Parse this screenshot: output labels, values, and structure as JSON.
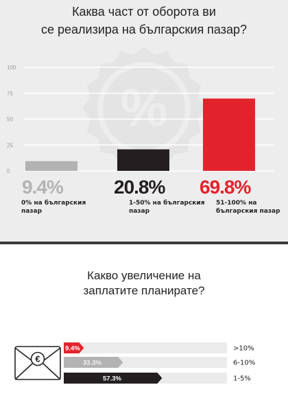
{
  "colors": {
    "red": "#e3232c",
    "dark": "#231f20",
    "gray": "#b3b3b3",
    "light_track": "#ebebeb"
  },
  "chart1": {
    "title_line1": "Каква част от оборота ви",
    "title_line2": "се реализира на българския пазар?",
    "icon": "percent-seal-icon"
  },
  "chart2": {
    "title_line1": "Какво увеличение на",
    "title_line2": "заплатите планирате?",
    "icon": "euro-envelope-icon"
  },
  "chart_data": [
    {
      "type": "bar",
      "title": "Каква част от оборота ви се реализира на българския пазар?",
      "ylim": [
        0,
        100
      ],
      "yticks": [
        "0",
        "25",
        "50",
        "75",
        "100"
      ],
      "grid": true,
      "categories": [
        "0% на българския пазар",
        "1-50% на българския пазар",
        "51-100% на българския пазар"
      ],
      "category_lines": [
        [
          "0% на българския",
          "пазар"
        ],
        [
          "1-50% на българския",
          "пазар"
        ],
        [
          "51-100% на",
          "българския пазар"
        ]
      ],
      "values": [
        9.4,
        20.8,
        69.8
      ],
      "value_labels": [
        "9.4%",
        "20.8%",
        "69.8%"
      ],
      "colors": [
        "#b3b3b3",
        "#231f20",
        "#e3232c"
      ]
    },
    {
      "type": "bar",
      "orientation": "horizontal",
      "title": "Какво увеличение на заплатите планирате?",
      "xlim": [
        0,
        100
      ],
      "categories": [
        ">10%",
        "6-10%",
        "1-5%"
      ],
      "values": [
        9.4,
        33.3,
        57.3
      ],
      "value_labels": [
        "9.4%",
        "33.3%",
        "57.3%"
      ],
      "colors": [
        "#e3232c",
        "#b3b3b3",
        "#231f20"
      ]
    }
  ]
}
